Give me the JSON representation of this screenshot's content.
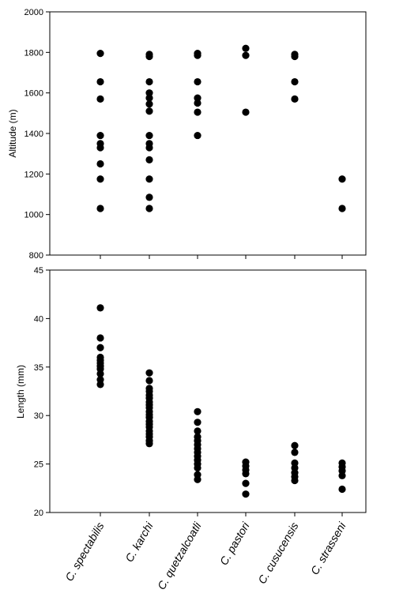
{
  "chart_data": [
    {
      "type": "scatter",
      "panel": "top",
      "title": "",
      "xlabel": "",
      "ylabel": "Altitude (m)",
      "ylim": [
        800,
        2000
      ],
      "yticks": [
        800,
        1000,
        1200,
        1400,
        1600,
        1800,
        2000
      ],
      "grid": false,
      "categories": [
        "C. spectabilis",
        "C. karchi",
        "C. quetzalcoatli",
        "C. pastori",
        "C. cusucensis",
        "C. strasseni"
      ],
      "series": [
        {
          "values": [
            [
              1030,
              1175,
              1250,
              1330,
              1350,
              1390,
              1570,
              1655,
              1795
            ],
            [
              1030,
              1085,
              1175,
              1270,
              1330,
              1350,
              1390,
              1510,
              1545,
              1575,
              1600,
              1655,
              1780,
              1790
            ],
            [
              1390,
              1505,
              1550,
              1575,
              1655,
              1785,
              1795
            ],
            [
              1505,
              1785,
              1820
            ],
            [
              1570,
              1655,
              1780,
              1790
            ],
            [
              1030,
              1175
            ]
          ]
        }
      ]
    },
    {
      "type": "scatter",
      "panel": "bottom",
      "title": "",
      "xlabel": "",
      "ylabel": "Length (mm)",
      "ylim": [
        20,
        45
      ],
      "yticks": [
        20,
        25,
        30,
        35,
        40,
        45
      ],
      "grid": false,
      "categories": [
        "C. spectabilis",
        "C. karchi",
        "C. quetzalcoatli",
        "C. pastori",
        "C. cusucensis",
        "C. strasseni"
      ],
      "series": [
        {
          "values": [
            [
              33.2,
              33.7,
              34.3,
              34.8,
              35.1,
              35.4,
              35.7,
              36.0,
              37.0,
              38.0,
              41.1
            ],
            [
              27.1,
              27.4,
              27.8,
              28.1,
              28.4,
              28.8,
              29.1,
              29.4,
              29.8,
              30.1,
              30.4,
              30.8,
              31.1,
              31.4,
              31.8,
              32.1,
              32.5,
              32.8,
              33.6,
              34.4
            ],
            [
              23.4,
              23.9,
              24.6,
              25.0,
              25.4,
              25.8,
              26.2,
              26.6,
              27.0,
              27.4,
              27.8,
              28.4,
              29.3,
              30.4
            ],
            [
              21.9,
              23.0,
              24.0,
              24.4,
              24.8,
              25.2
            ],
            [
              23.3,
              23.7,
              24.1,
              24.6,
              25.1,
              26.2,
              26.9
            ],
            [
              22.4,
              23.8,
              24.3,
              24.7,
              25.1
            ]
          ]
        }
      ]
    }
  ]
}
